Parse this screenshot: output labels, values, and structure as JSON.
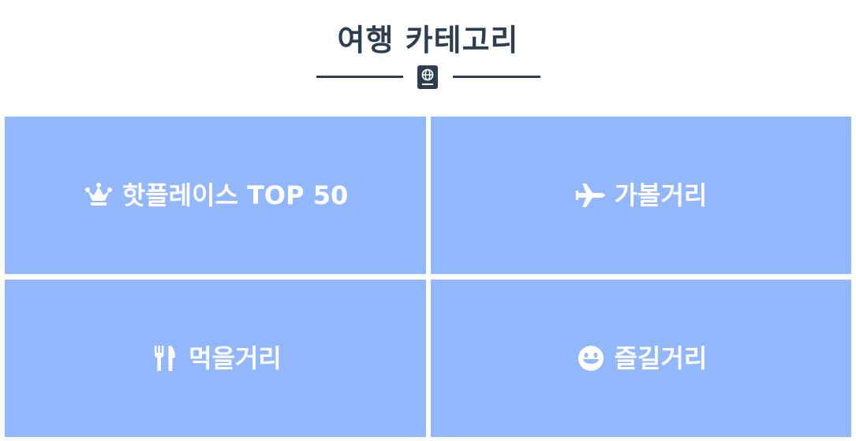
{
  "header": {
    "title": "여행 카테고리",
    "divider_icon": "passport-icon"
  },
  "categories": [
    {
      "label": "핫플레이스 TOP 50",
      "icon": "crown-icon"
    },
    {
      "label": "가볼거리",
      "icon": "plane-icon"
    },
    {
      "label": "먹을거리",
      "icon": "utensils-icon"
    },
    {
      "label": "즐길거리",
      "icon": "smile-icon"
    }
  ],
  "colors": {
    "title": "#2c3e50",
    "tile_background": "#92b7fd",
    "tile_text": "#ffffff"
  }
}
